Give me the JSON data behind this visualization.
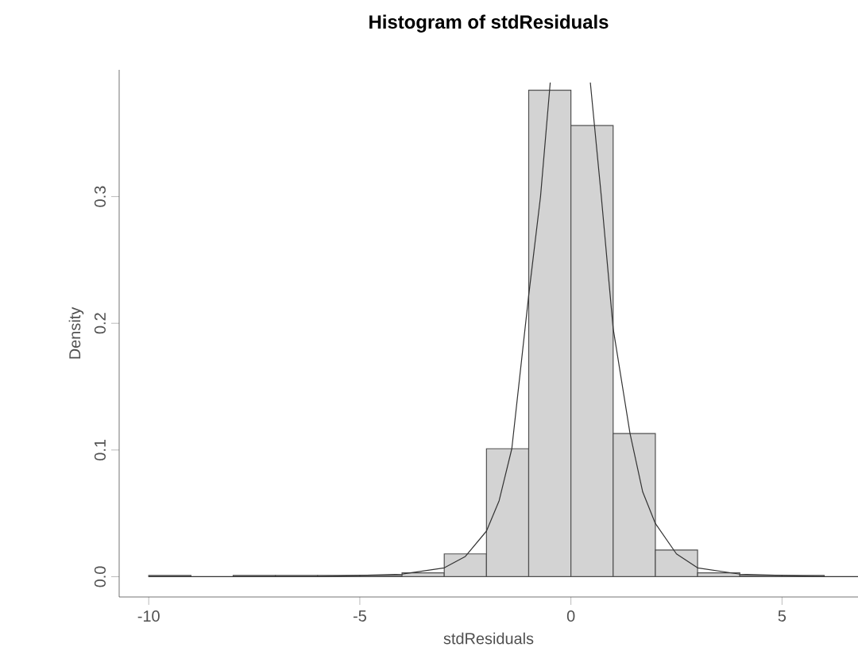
{
  "chart_data": {
    "type": "histogram",
    "title": "Histogram of stdResiduals",
    "xlabel": "stdResiduals",
    "ylabel": "Density",
    "xlim": [
      -10.7,
      6.8
    ],
    "ylim": [
      -0.016,
      0.4
    ],
    "xticks": [
      -10,
      -5,
      0,
      5
    ],
    "yticks": [
      {
        "value": 0,
        "label": "0.0"
      },
      0.1,
      0.2,
      0.3
    ],
    "grid": false,
    "series": [
      {
        "color": "#d3d3d3",
        "bins": [
          -10,
          -9,
          -8,
          -7,
          -6,
          -5,
          -4,
          -3,
          -2,
          -1,
          0,
          1,
          2,
          3,
          4,
          5,
          6
        ],
        "values": [
          0.001,
          null,
          0.001,
          0.001,
          0.001,
          0.001,
          0.003,
          0.018,
          0.101,
          0.384,
          0.356,
          0.113,
          0.021,
          0.003,
          0.001,
          0.001
        ]
      },
      {
        "type": "line",
        "color": "#333333",
        "x": [
          -10,
          -8,
          -6,
          -5,
          -4,
          -3,
          -2.5,
          -2,
          -1.7,
          -1.4,
          -1,
          -0.72,
          -0.49,
          0,
          0.46,
          0.72,
          1,
          1.4,
          1.7,
          2,
          2.5,
          3,
          4,
          5,
          6,
          6.8
        ],
        "values": [
          0,
          0,
          0,
          0.001,
          0.002,
          0.007,
          0.016,
          0.036,
          0.06,
          0.101,
          0.222,
          0.3,
          0.39,
          null,
          0.39,
          0.3,
          0.196,
          0.113,
          0.067,
          0.042,
          0.018,
          0.007,
          0.002,
          0.001,
          0,
          0
        ]
      }
    ]
  }
}
